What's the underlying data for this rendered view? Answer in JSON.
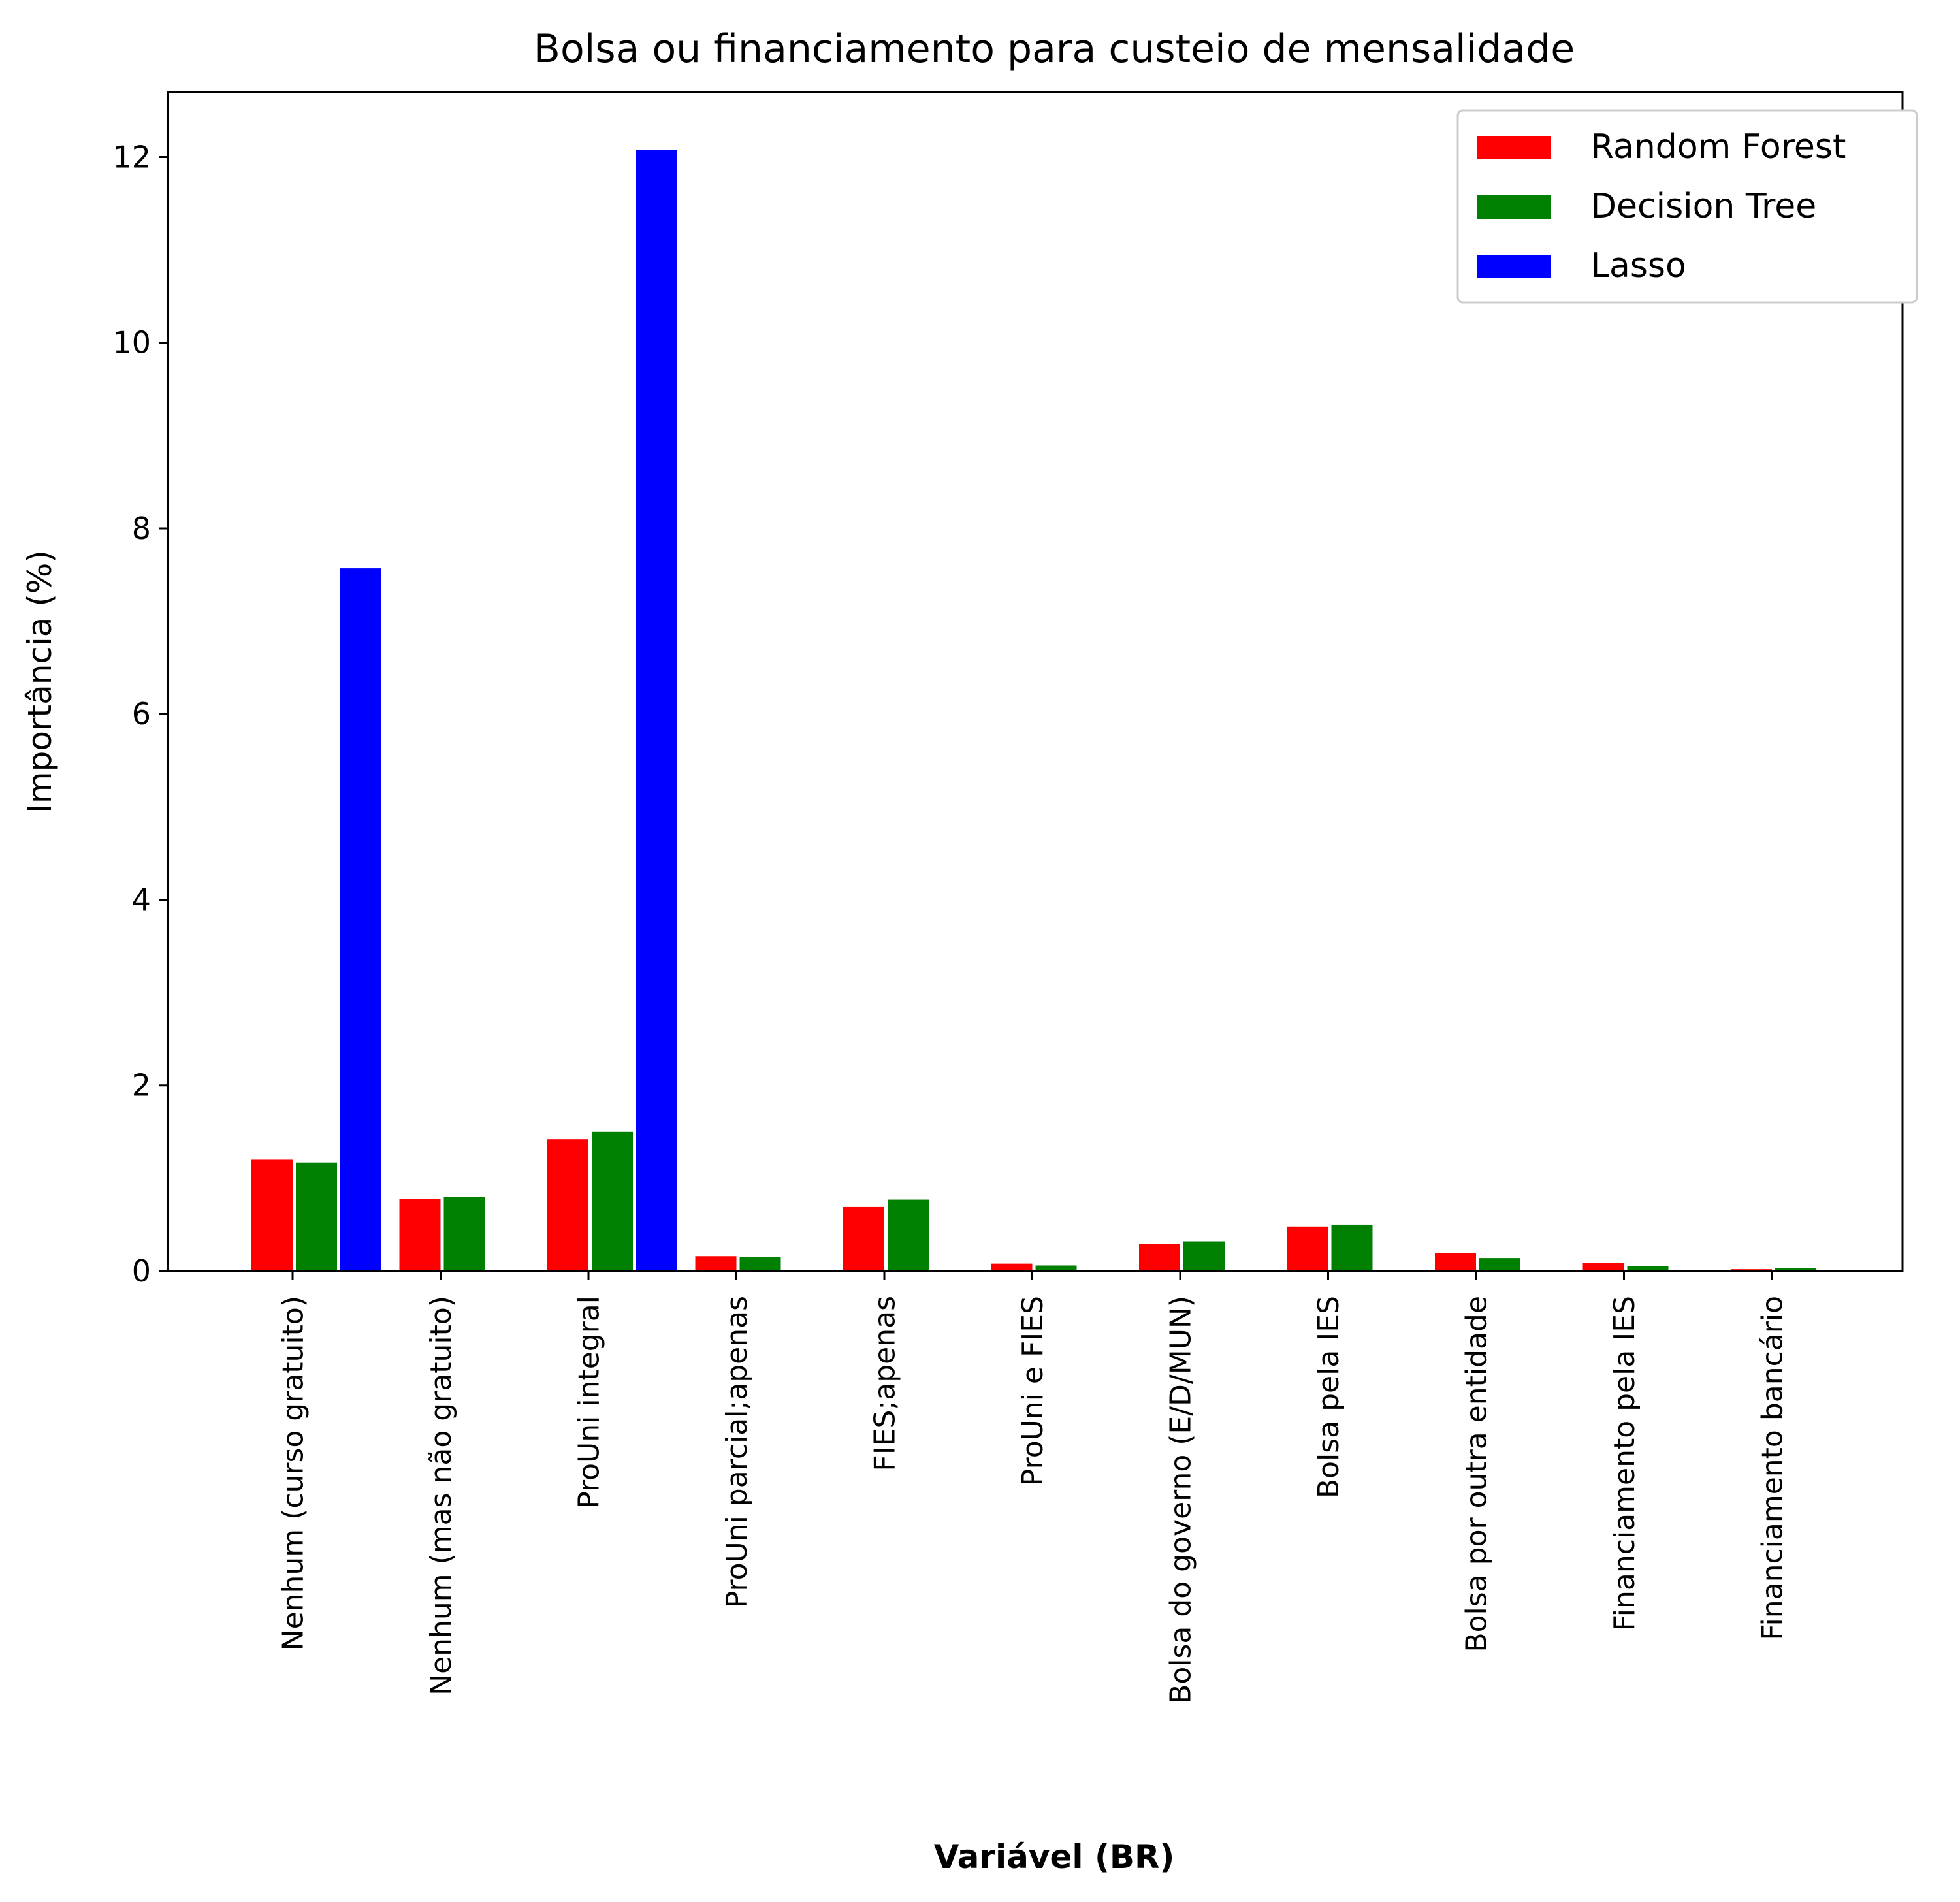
{
  "chart_data": {
    "type": "bar",
    "title": "Bolsa ou financiamento para custeio de mensalidade",
    "xlabel": "Variável (BR)",
    "ylabel": "Importância (%)",
    "ylim": [
      0,
      12.7
    ],
    "yticks": [
      0,
      2,
      4,
      6,
      8,
      10,
      12
    ],
    "legend_position": "top-right",
    "grid": false,
    "categories": [
      "Nenhum (curso gratuito)",
      "Nenhum (mas não gratuito)",
      "ProUni integral",
      "ProUni parcial;apenas",
      "FIES;apenas",
      "ProUni e FIES",
      "Bolsa do governo (E/D/MUN)",
      "Bolsa pela IES",
      "Bolsa por outra entidade",
      "Financiamento pela IES",
      "Financiamento bancário"
    ],
    "series": [
      {
        "name": "Random Forest",
        "color": "#ff0000",
        "values": [
          1.2,
          0.78,
          1.42,
          0.16,
          0.69,
          0.08,
          0.29,
          0.48,
          0.19,
          0.09,
          0.02
        ]
      },
      {
        "name": "Decision Tree",
        "color": "#008000",
        "values": [
          1.17,
          0.8,
          1.5,
          0.15,
          0.77,
          0.06,
          0.32,
          0.5,
          0.14,
          0.05,
          0.03
        ]
      },
      {
        "name": "Lasso",
        "color": "#0000ff",
        "values": [
          7.57,
          0,
          12.08,
          0,
          0,
          0,
          0,
          0,
          0,
          0,
          0
        ]
      }
    ]
  }
}
